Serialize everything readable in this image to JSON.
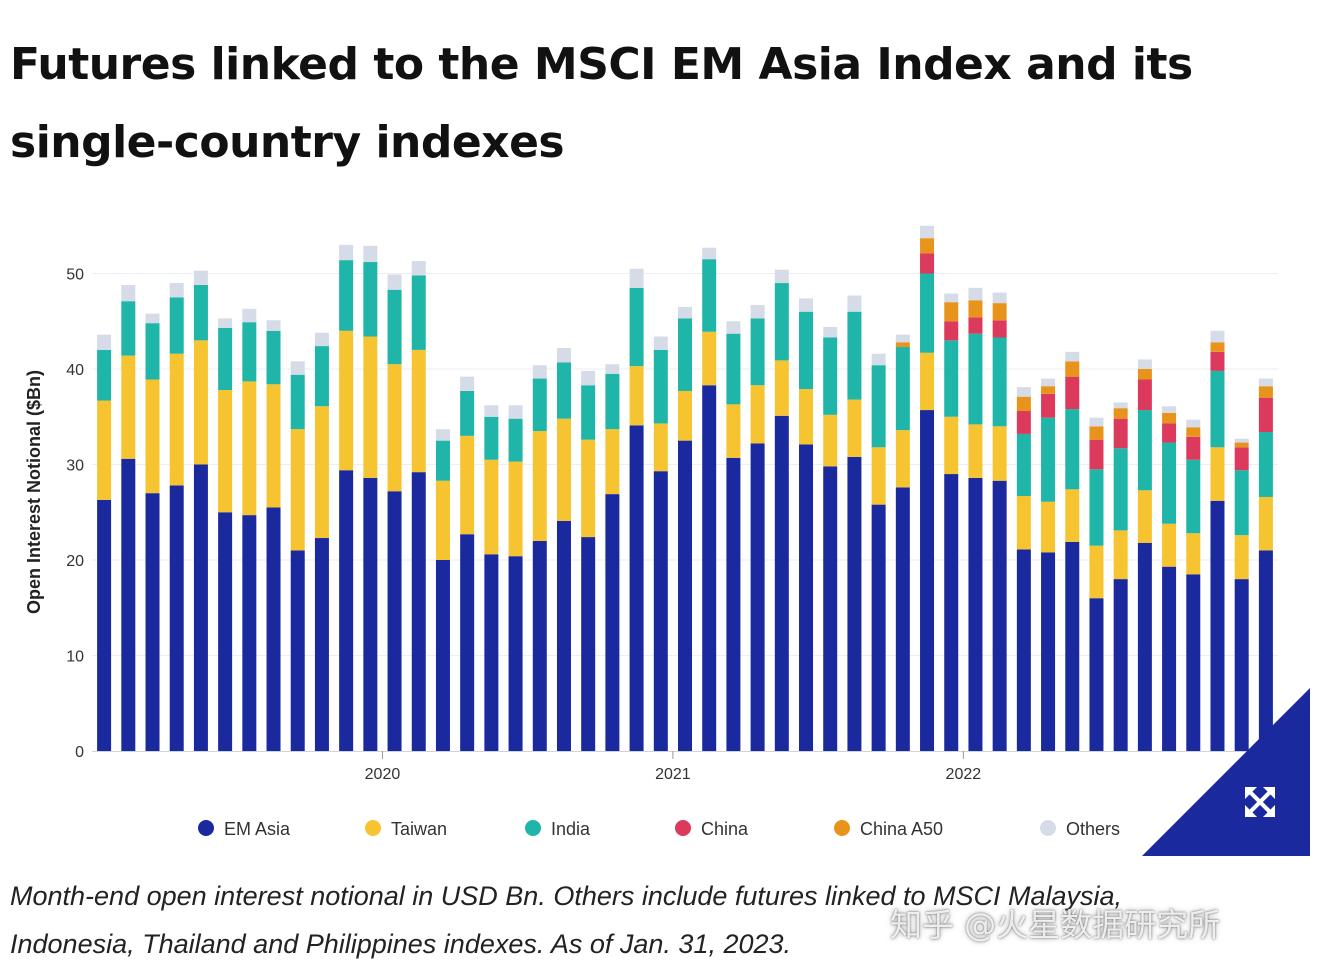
{
  "title": "Futures linked to the MSCI EM Asia Index and its single-country indexes",
  "caption": "Month-end open interest notional in USD Bn. Others include futures linked to MSCI Malaysia, Indonesia, Thailand and Philippines indexes. As of Jan. 31, 2023.",
  "watermark": "知乎 @火星数据研究所",
  "expand_icon": "expand-arrows-icon",
  "colors": {
    "em_asia": "#1a2a9e",
    "taiwan": "#f6c431",
    "india": "#1fb5a8",
    "china": "#dc3a5c",
    "china_a50": "#e8941c",
    "others": "#d5dce8",
    "badge": "#1a2a9e"
  },
  "chart_data": {
    "type": "bar",
    "stacked": true,
    "title": "Futures linked to the MSCI EM Asia Index and its single-country indexes",
    "xlabel": "",
    "ylabel": "Open Interest Notional ($Bn)",
    "ylim": [
      0,
      55
    ],
    "yticks": [
      0,
      10,
      20,
      30,
      40,
      50
    ],
    "grid": true,
    "legend_position": "bottom",
    "x_tick_labels": [
      {
        "label": "2020",
        "index": 12
      },
      {
        "label": "2021",
        "index": 24
      },
      {
        "label": "2022",
        "index": 36
      }
    ],
    "categories": [
      "2019-01",
      "2019-02",
      "2019-03",
      "2019-04",
      "2019-05",
      "2019-06",
      "2019-07",
      "2019-08",
      "2019-09",
      "2019-10",
      "2019-11",
      "2019-12",
      "2020-01",
      "2020-02",
      "2020-03",
      "2020-04",
      "2020-05",
      "2020-06",
      "2020-07",
      "2020-08",
      "2020-09",
      "2020-10",
      "2020-11",
      "2020-12",
      "2021-01",
      "2021-02",
      "2021-03",
      "2021-04",
      "2021-05",
      "2021-06",
      "2021-07",
      "2021-08",
      "2021-09",
      "2021-10",
      "2021-11",
      "2021-12",
      "2022-01",
      "2022-02",
      "2022-03",
      "2022-04",
      "2022-05",
      "2022-06",
      "2022-07",
      "2022-08",
      "2022-09",
      "2022-10",
      "2022-11",
      "2022-12",
      "2023-01"
    ],
    "series": [
      {
        "name": "EM Asia",
        "color": "#1a2a9e",
        "values": [
          26.3,
          30.6,
          27.0,
          27.8,
          30.0,
          25.0,
          24.7,
          25.5,
          21.0,
          22.3,
          29.4,
          28.6,
          27.2,
          29.2,
          20.0,
          22.7,
          20.6,
          20.4,
          22.0,
          24.1,
          22.4,
          26.9,
          34.1,
          29.3,
          32.5,
          38.3,
          30.7,
          32.2,
          35.1,
          32.1,
          29.8,
          30.8,
          25.8,
          27.6,
          35.7,
          29.0,
          28.6,
          28.3,
          21.1,
          20.8,
          21.9,
          16.0,
          18.0,
          21.8,
          19.3,
          18.5,
          26.2,
          18.0,
          21.0
        ]
      },
      {
        "name": "Taiwan",
        "color": "#f6c431",
        "values": [
          10.4,
          10.8,
          11.9,
          13.8,
          13.0,
          12.8,
          14.0,
          12.9,
          12.7,
          13.8,
          14.6,
          14.8,
          13.3,
          12.8,
          8.3,
          10.3,
          9.9,
          9.9,
          11.5,
          10.7,
          10.2,
          6.8,
          6.2,
          5.0,
          5.2,
          5.6,
          5.6,
          6.1,
          5.8,
          5.8,
          5.4,
          6.0,
          6.0,
          6.0,
          6.0,
          6.0,
          5.6,
          5.7,
          5.6,
          5.3,
          5.5,
          5.5,
          5.1,
          5.5,
          4.5,
          4.3,
          5.6,
          4.6,
          5.6
        ]
      },
      {
        "name": "India",
        "color": "#1fb5a8",
        "values": [
          5.3,
          5.7,
          5.9,
          5.9,
          5.8,
          6.5,
          6.2,
          5.6,
          5.7,
          6.3,
          7.4,
          7.8,
          7.8,
          7.8,
          4.2,
          4.7,
          4.5,
          4.5,
          5.5,
          5.9,
          5.7,
          5.8,
          8.2,
          7.7,
          7.6,
          7.6,
          7.4,
          7.0,
          8.1,
          8.1,
          8.1,
          9.2,
          8.6,
          8.7,
          8.3,
          8.0,
          9.5,
          9.3,
          6.5,
          8.8,
          8.4,
          8.0,
          8.6,
          8.4,
          8.5,
          7.7,
          8.0,
          6.8,
          6.8
        ]
      },
      {
        "name": "China",
        "color": "#dc3a5c",
        "values": [
          0,
          0,
          0,
          0,
          0,
          0,
          0,
          0,
          0,
          0,
          0,
          0,
          0,
          0,
          0,
          0,
          0,
          0,
          0,
          0,
          0,
          0,
          0,
          0,
          0,
          0,
          0,
          0,
          0,
          0,
          0,
          0,
          0,
          0,
          2.1,
          2.0,
          1.7,
          1.8,
          2.4,
          2.5,
          3.4,
          3.1,
          3.1,
          3.2,
          2.0,
          2.4,
          2.0,
          2.4,
          3.6
        ]
      },
      {
        "name": "China A50",
        "color": "#e8941c",
        "values": [
          0,
          0,
          0,
          0,
          0,
          0,
          0,
          0,
          0,
          0,
          0,
          0,
          0,
          0,
          0,
          0,
          0,
          0,
          0,
          0,
          0,
          0,
          0,
          0,
          0,
          0,
          0,
          0,
          0,
          0,
          0,
          0,
          0,
          0.5,
          1.6,
          2.0,
          1.8,
          1.8,
          1.5,
          0.8,
          1.6,
          1.4,
          1.1,
          1.1,
          1.1,
          1.0,
          1.0,
          0.5,
          1.2
        ]
      },
      {
        "name": "Others",
        "color": "#d5dce8",
        "values": [
          1.6,
          1.7,
          1.0,
          1.5,
          1.5,
          1.0,
          1.4,
          1.1,
          1.4,
          1.4,
          1.6,
          1.7,
          1.6,
          1.5,
          1.2,
          1.5,
          1.2,
          1.4,
          1.4,
          1.5,
          1.5,
          1.0,
          2.0,
          1.4,
          1.2,
          1.2,
          1.3,
          1.4,
          1.4,
          1.4,
          1.1,
          1.7,
          1.2,
          0.8,
          1.3,
          0.9,
          1.3,
          1.1,
          1.0,
          0.8,
          1.0,
          0.9,
          0.6,
          1.0,
          0.7,
          0.8,
          1.2,
          0.4,
          0.8
        ]
      }
    ]
  }
}
